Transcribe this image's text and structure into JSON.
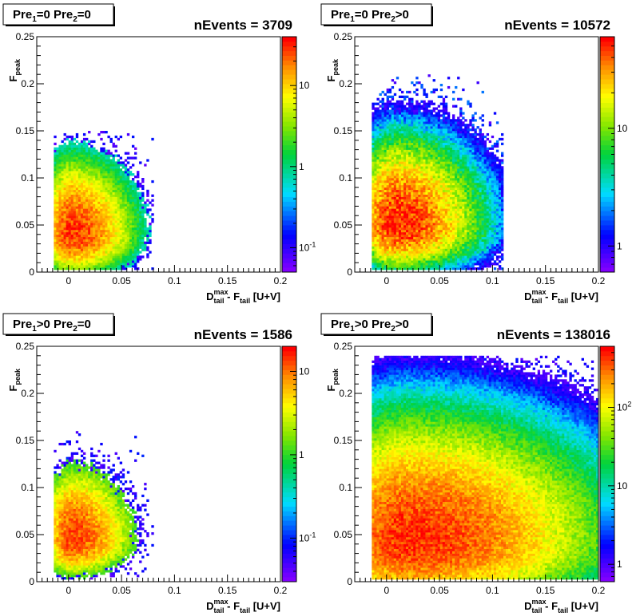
{
  "chart_data": [
    {
      "type": "heatmap",
      "title": "Pre1=0  Pre2=0",
      "title_main": "Pre",
      "title_sub1": "1",
      "title_mid": "=0  Pre",
      "title_sub2": "2",
      "title_end": "=0",
      "stat_label": "nEvents = 3709",
      "xlabel": {
        "main": "D",
        "sup": "max",
        "sub": "tail",
        "rest": " - F",
        "sub2": "tail",
        "end": " [U+V]"
      },
      "ylabel": {
        "main": "F",
        "sub": "peak"
      },
      "xlim": [
        -0.03,
        0.2
      ],
      "ylim": [
        0,
        0.25
      ],
      "x_ticks": [
        "0",
        "0.05",
        "0.1",
        "0.15",
        "0.2"
      ],
      "y_ticks": [
        "0",
        "0.05",
        "0.1",
        "0.15",
        "0.2",
        "0.25"
      ],
      "z_scale": "log",
      "z_range": [
        0.05,
        40
      ],
      "z_ticks": [
        {
          "value": 10,
          "label": "10"
        },
        {
          "value": 1,
          "label": "1"
        },
        {
          "value": 0.1,
          "label": "10-1"
        }
      ],
      "cluster": {
        "cx": 0.002,
        "cy": 0.04,
        "sx": 0.012,
        "sy": 0.022,
        "peak": 30,
        "floor": 0.6,
        "xmax_extent": 0.08,
        "ymax_extent": 0.15
      }
    },
    {
      "type": "heatmap",
      "title": "Pre1=0  Pre2>0",
      "title_main": "Pre",
      "title_sub1": "1",
      "title_mid": "=0  Pre",
      "title_sub2": "2",
      "title_end": ">0",
      "stat_label": "nEvents = 10572",
      "xlabel": {
        "main": "D",
        "sup": "max",
        "sub": "tail",
        "rest": " - F",
        "sub2": "tail",
        "end": " [U+V]"
      },
      "ylabel": {
        "main": "F",
        "sub": "peak"
      },
      "xlim": [
        -0.03,
        0.2
      ],
      "ylim": [
        0,
        0.25
      ],
      "x_ticks": [
        "0",
        "0.05",
        "0.1",
        "0.15",
        "0.2"
      ],
      "y_ticks": [
        "0",
        "0.05",
        "0.1",
        "0.15",
        "0.2",
        "0.25"
      ],
      "z_scale": "log",
      "z_range": [
        0.6,
        60
      ],
      "z_ticks": [
        {
          "value": 10,
          "label": "10"
        },
        {
          "value": 1,
          "label": "1"
        }
      ],
      "cluster": {
        "cx": 0.008,
        "cy": 0.05,
        "sx": 0.018,
        "sy": 0.028,
        "peak": 55,
        "floor": 0.8,
        "xmax_extent": 0.11,
        "ymax_extent": 0.21
      }
    },
    {
      "type": "heatmap",
      "title": "Pre1>0  Pre2=0",
      "title_main": "Pre",
      "title_sub1": "1",
      "title_mid": ">0  Pre",
      "title_sub2": "2",
      "title_end": "=0",
      "stat_label": "nEvents = 1586",
      "xlabel": {
        "main": "D",
        "sup": "max",
        "sub": "tail",
        "rest": " - F",
        "sub2": "tail",
        "end": " [U+V]"
      },
      "ylabel": {
        "main": "F",
        "sub": "peak"
      },
      "xlim": [
        -0.03,
        0.2
      ],
      "ylim": [
        0,
        0.25
      ],
      "x_ticks": [
        "0",
        "0.05",
        "0.1",
        "0.15",
        "0.2"
      ],
      "y_ticks": [
        "0",
        "0.05",
        "0.1",
        "0.15",
        "0.2",
        "0.25"
      ],
      "z_scale": "log",
      "z_range": [
        0.03,
        20
      ],
      "z_ticks": [
        {
          "value": 10,
          "label": "10"
        },
        {
          "value": 1,
          "label": "1"
        },
        {
          "value": 0.1,
          "label": "10-1"
        }
      ],
      "cluster": {
        "cx": 0.003,
        "cy": 0.045,
        "sx": 0.012,
        "sy": 0.022,
        "peak": 14,
        "floor": 1.0,
        "xmax_extent": 0.08,
        "ymax_extent": 0.16
      }
    },
    {
      "type": "heatmap",
      "title": "Pre1>0  Pre2>0",
      "title_main": "Pre",
      "title_sub1": "1",
      "title_mid": ">0  Pre",
      "title_sub2": "2",
      "title_end": ">0",
      "stat_label": "nEvents = 138016",
      "xlabel": {
        "main": "D",
        "sup": "max",
        "sub": "tail",
        "rest": " - F",
        "sub2": "tail",
        "end": " [U+V]"
      },
      "ylabel": {
        "main": "F",
        "sub": "peak"
      },
      "xlim": [
        -0.03,
        0.2
      ],
      "ylim": [
        0,
        0.25
      ],
      "x_ticks": [
        "0",
        "0.05",
        "0.1",
        "0.15",
        "0.2"
      ],
      "y_ticks": [
        "0",
        "0.05",
        "0.1",
        "0.15",
        "0.2",
        "0.25"
      ],
      "z_scale": "log",
      "z_range": [
        0.6,
        600
      ],
      "z_ticks": [
        {
          "value": 100,
          "label": "102"
        },
        {
          "value": 10,
          "label": "10"
        },
        {
          "value": 1,
          "label": "1"
        }
      ],
      "cluster": {
        "cx": 0.02,
        "cy": 0.042,
        "sx": 0.035,
        "sy": 0.035,
        "peak": 480,
        "floor": 0.8,
        "xmax_extent": 0.2,
        "ymax_extent": 0.24
      }
    }
  ]
}
